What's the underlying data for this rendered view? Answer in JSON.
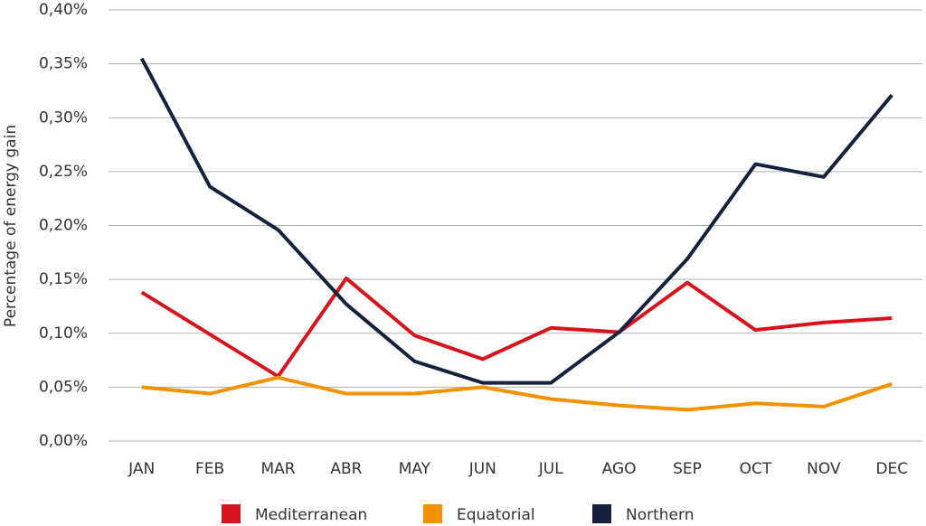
{
  "chart_data": {
    "type": "line",
    "y_label": "Percentage of energy gain",
    "categories": [
      "JAN",
      "FEB",
      "MAR",
      "ABR",
      "MAY",
      "JUN",
      "JUL",
      "AGO",
      "SEP",
      "OCT",
      "NOV",
      "DEC"
    ],
    "series": [
      {
        "name": "Mediterranean",
        "color": "#d7141e",
        "values": [
          0.138,
          0.099,
          0.06,
          0.151,
          0.098,
          0.076,
          0.105,
          0.101,
          0.147,
          0.103,
          0.11,
          0.114
        ]
      },
      {
        "name": "Equatorial",
        "color": "#f39200",
        "values": [
          0.05,
          0.044,
          0.059,
          0.044,
          0.044,
          0.05,
          0.039,
          0.033,
          0.029,
          0.035,
          0.032,
          0.053
        ]
      },
      {
        "name": "Northern",
        "color": "#16213d",
        "values": [
          0.355,
          0.236,
          0.196,
          0.127,
          0.074,
          0.054,
          0.054,
          0.101,
          0.169,
          0.257,
          0.245,
          0.321
        ]
      }
    ],
    "ylim": [
      0,
      0.4
    ],
    "yticks": [
      {
        "value": 0,
        "label": "0,00%"
      },
      {
        "value": 0.05,
        "label": "0,05%"
      },
      {
        "value": 0.1,
        "label": "0,10%"
      },
      {
        "value": 0.15,
        "label": "0,15%"
      },
      {
        "value": 0.2,
        "label": "0,20%"
      },
      {
        "value": 0.25,
        "label": "0,25%"
      },
      {
        "value": 0.3,
        "label": "0,30%"
      },
      {
        "value": 0.35,
        "label": "0,35%"
      },
      {
        "value": 0.4,
        "label": "0,40%"
      }
    ],
    "grid": true,
    "legend": "bottom"
  }
}
